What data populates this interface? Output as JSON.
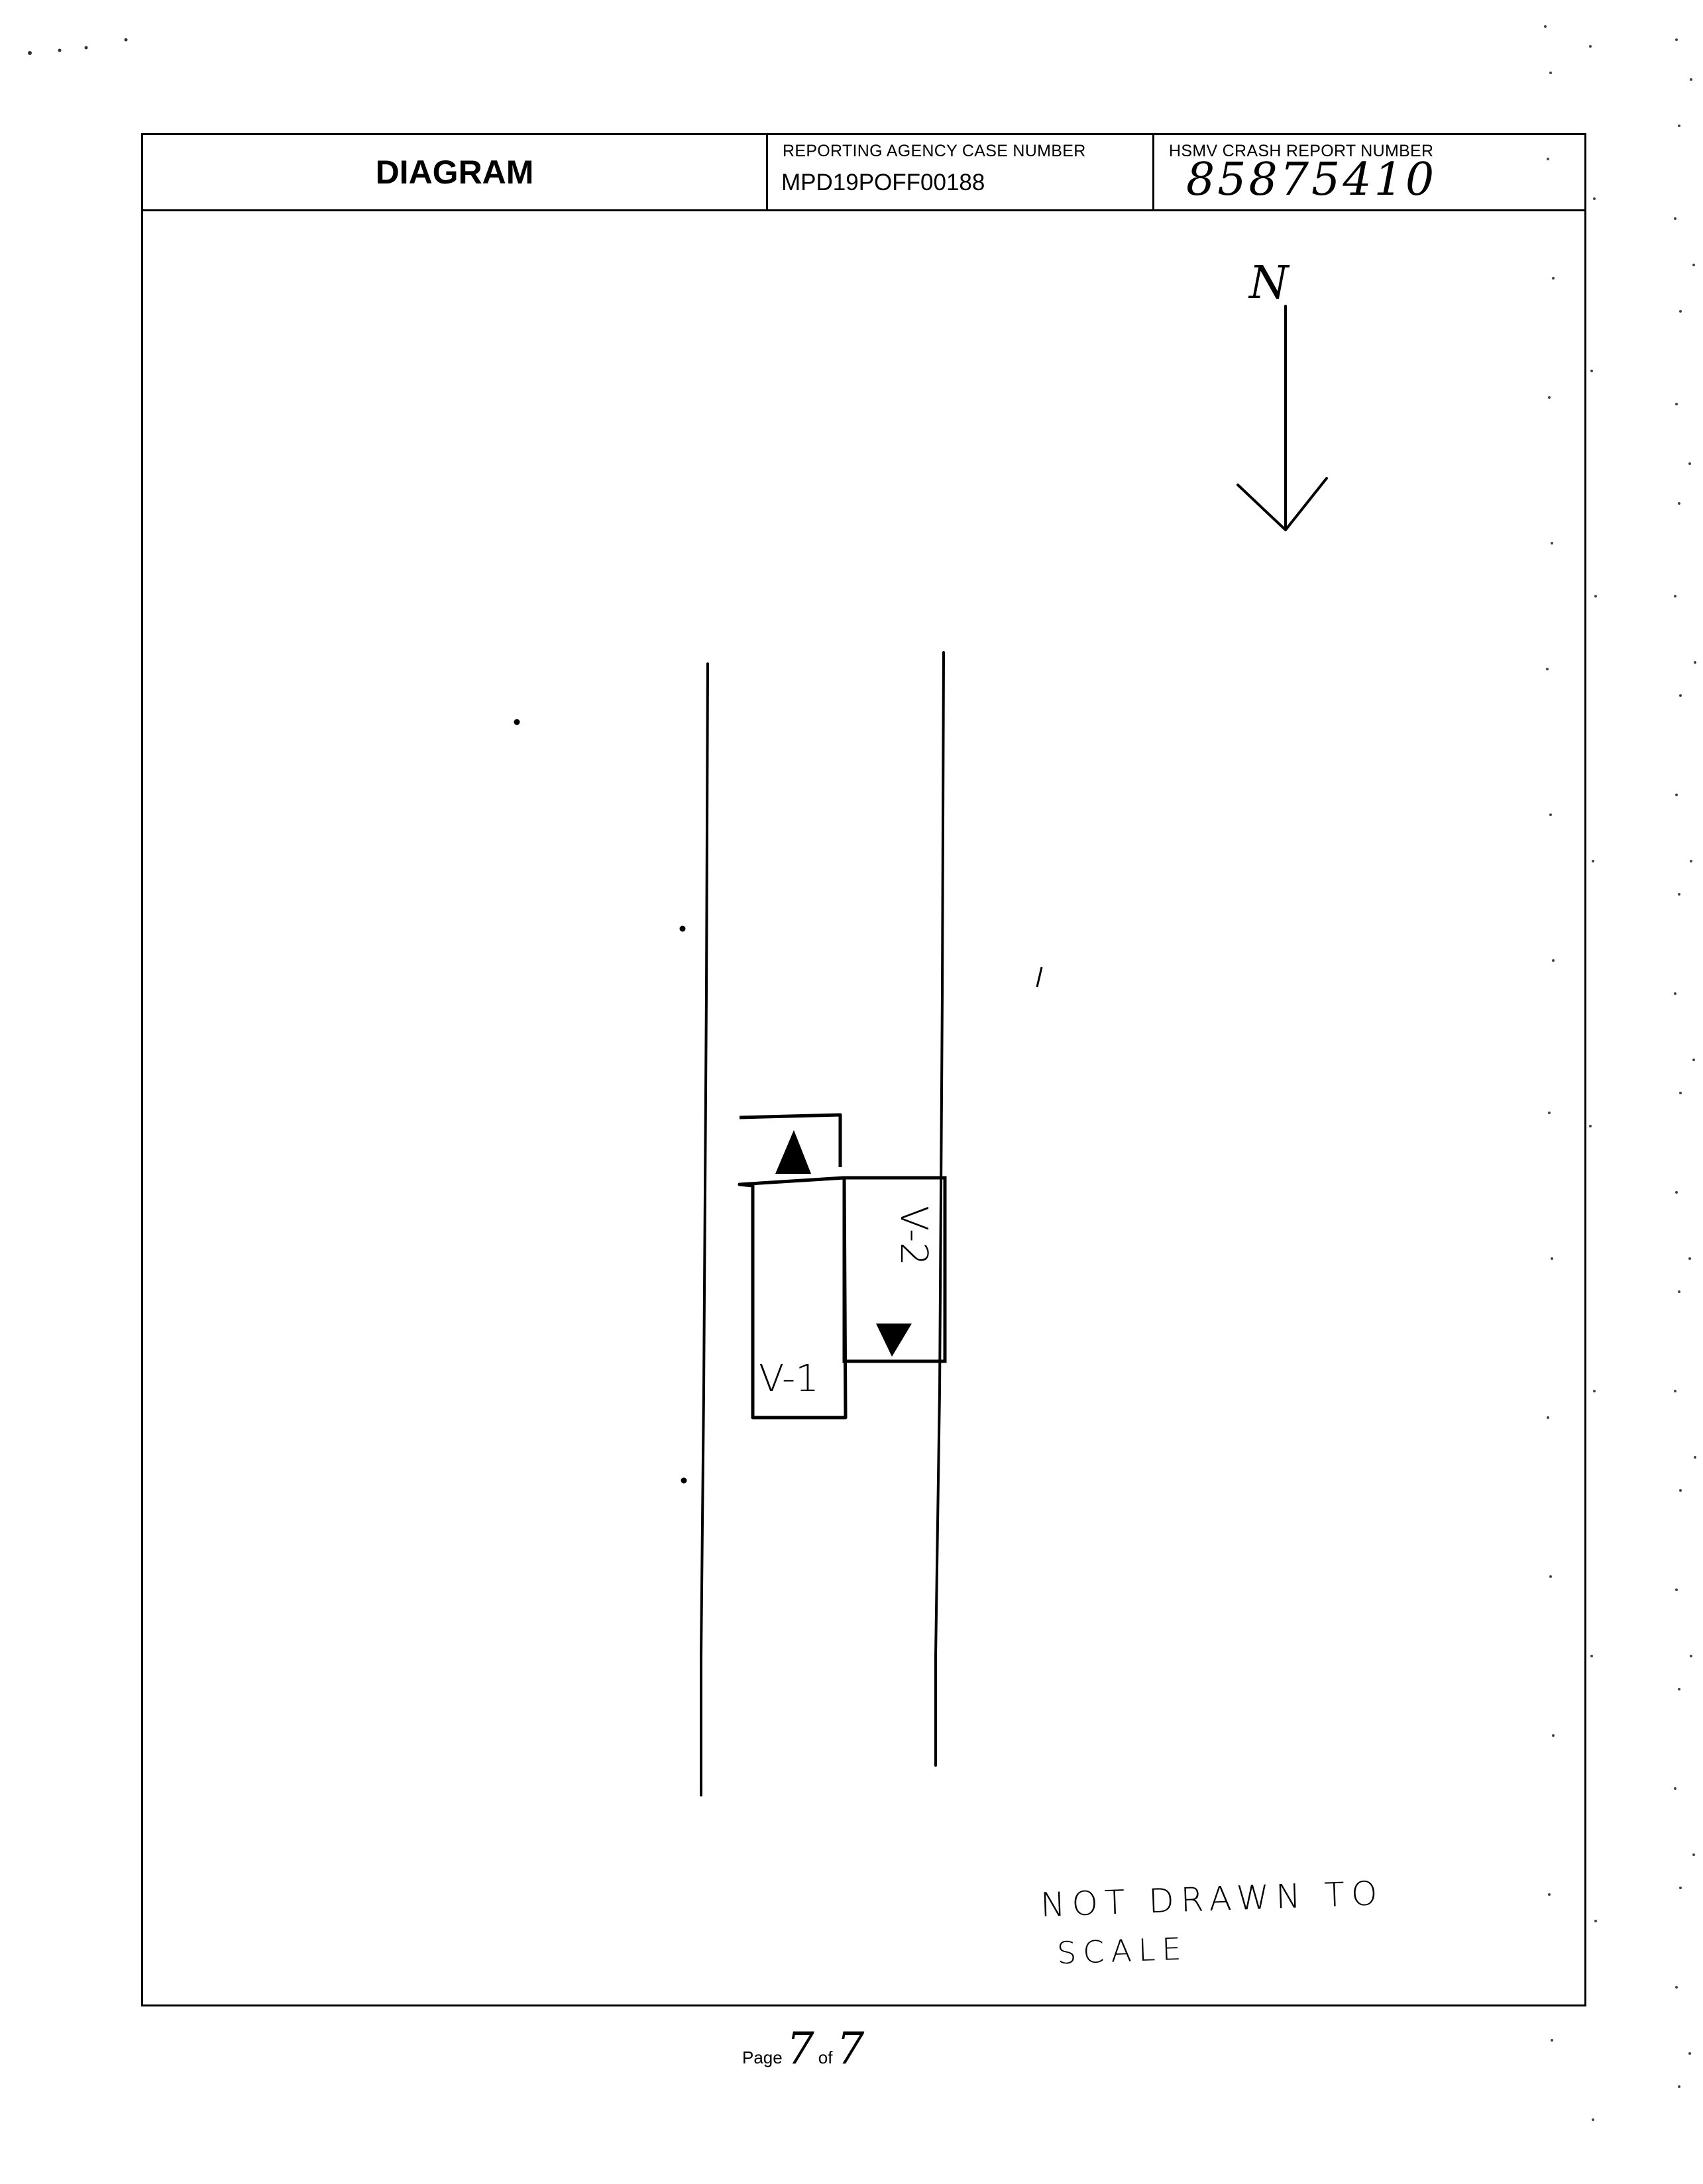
{
  "header": {
    "title": "DIAGRAM",
    "case_number_label": "REPORTING AGENCY CASE NUMBER",
    "case_number_value": "MPD19POFF00188",
    "crash_report_label": "HSMV CRASH REPORT NUMBER",
    "crash_report_value": "85875410"
  },
  "drawing": {
    "north_label": "N",
    "vehicle_1_label": "V-1",
    "vehicle_2_label": "V-2",
    "note_line1": "NOT DRAWN TO",
    "note_line2": "SCALE"
  },
  "footer": {
    "page_word": "Page",
    "page_current": "7",
    "of_word": "of",
    "page_total": "7"
  }
}
